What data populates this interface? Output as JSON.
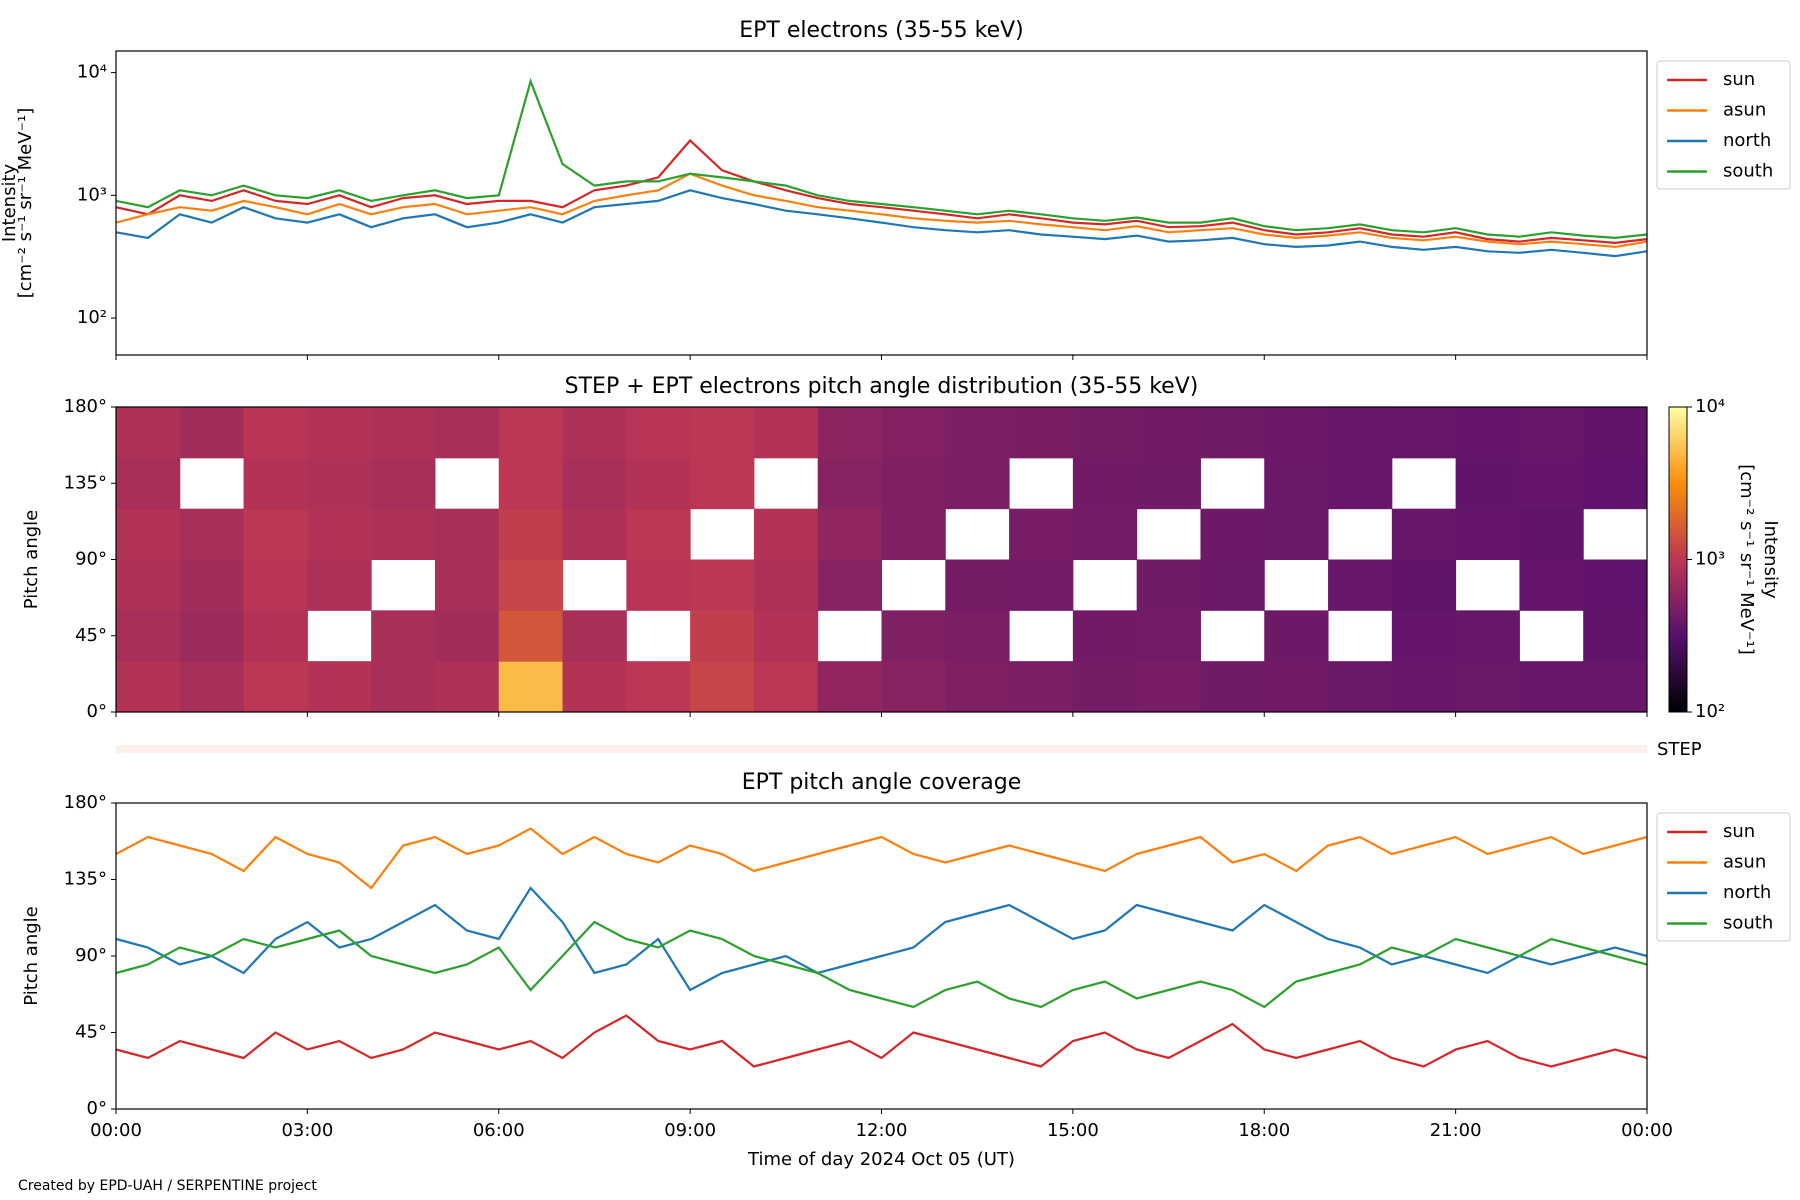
{
  "chart_data": [
    {
      "type": "line",
      "title": "EPT electrons (35-55 keV)",
      "ylabel": [
        "Intensity",
        "[cm⁻² s⁻¹ sr⁻¹ MeV⁻¹]"
      ],
      "log_y": true,
      "x": [
        0,
        0.5,
        1,
        1.5,
        2,
        2.5,
        3,
        3.5,
        4,
        4.5,
        5,
        5.5,
        6,
        6.5,
        7,
        7.5,
        8,
        8.5,
        9,
        9.5,
        10,
        10.5,
        11,
        11.5,
        12,
        12.5,
        13,
        13.5,
        14,
        14.5,
        15,
        15.5,
        16,
        16.5,
        17,
        17.5,
        18,
        18.5,
        19,
        19.5,
        20,
        20.5,
        21,
        21.5,
        22,
        22.5,
        23,
        23.5,
        24
      ],
      "xlim": [
        0,
        24
      ],
      "xticks": [
        0,
        3,
        6,
        9,
        12,
        15,
        18,
        21,
        24
      ],
      "ylim": [
        50,
        15000
      ],
      "yticks": [
        {
          "value": 100,
          "label": "10²"
        },
        {
          "value": 1000,
          "label": "10³"
        },
        {
          "value": 10000,
          "label": "10⁴"
        }
      ],
      "series": [
        {
          "name": "sun",
          "color": "#d62728",
          "values": [
            800,
            700,
            1000,
            900,
            1100,
            900,
            850,
            1000,
            800,
            950,
            1000,
            850,
            900,
            900,
            800,
            1100,
            1200,
            1400,
            2800,
            1600,
            1300,
            1100,
            950,
            850,
            800,
            750,
            700,
            650,
            700,
            650,
            600,
            580,
            620,
            550,
            560,
            600,
            520,
            480,
            500,
            540,
            480,
            460,
            500,
            440,
            420,
            450,
            430,
            410,
            440
          ]
        },
        {
          "name": "asun",
          "color": "#ff7f0e",
          "values": [
            600,
            700,
            800,
            750,
            900,
            800,
            700,
            850,
            700,
            800,
            850,
            700,
            750,
            800,
            700,
            900,
            1000,
            1100,
            1500,
            1200,
            1000,
            900,
            800,
            750,
            700,
            650,
            620,
            600,
            620,
            580,
            550,
            520,
            560,
            500,
            520,
            540,
            480,
            450,
            470,
            500,
            450,
            430,
            460,
            420,
            400,
            420,
            400,
            380,
            420
          ]
        },
        {
          "name": "north",
          "color": "#1f77b4",
          "values": [
            500,
            450,
            700,
            600,
            800,
            650,
            600,
            700,
            550,
            650,
            700,
            550,
            600,
            700,
            600,
            800,
            850,
            900,
            1100,
            950,
            850,
            750,
            700,
            650,
            600,
            550,
            520,
            500,
            520,
            480,
            460,
            440,
            470,
            420,
            430,
            450,
            400,
            380,
            390,
            420,
            380,
            360,
            380,
            350,
            340,
            360,
            340,
            320,
            350
          ]
        },
        {
          "name": "south",
          "color": "#2ca02c",
          "values": [
            900,
            800,
            1100,
            1000,
            1200,
            1000,
            950,
            1100,
            900,
            1000,
            1100,
            950,
            1000,
            8500,
            1800,
            1200,
            1300,
            1300,
            1500,
            1400,
            1300,
            1200,
            1000,
            900,
            850,
            800,
            750,
            700,
            750,
            700,
            650,
            620,
            660,
            600,
            600,
            650,
            560,
            520,
            540,
            580,
            520,
            500,
            540,
            480,
            460,
            500,
            470,
            450,
            480
          ]
        }
      ]
    },
    {
      "type": "heatmap",
      "title": "STEP + EPT electrons pitch angle distribution (35-55 keV)",
      "ylabel": [
        "Pitch angle"
      ],
      "xlim": [
        0,
        24
      ],
      "xticks": [
        0,
        3,
        6,
        9,
        12,
        15,
        18,
        21,
        24
      ],
      "ylim": [
        0,
        180
      ],
      "yticks": [
        {
          "value": 0,
          "label": "0°"
        },
        {
          "value": 45,
          "label": "45°"
        },
        {
          "value": 90,
          "label": "90°"
        },
        {
          "value": 135,
          "label": "135°"
        },
        {
          "value": 180,
          "label": "180°"
        }
      ],
      "x_bins": [
        0,
        1,
        2,
        3,
        4,
        5,
        6,
        7,
        8,
        9,
        10,
        11,
        12,
        13,
        14,
        15,
        16,
        17,
        18,
        19,
        20,
        21,
        22,
        23,
        24
      ],
      "y_bins": [
        0,
        30,
        60,
        90,
        120,
        150,
        180
      ],
      "z": [
        [
          900,
          800,
          1000,
          900,
          800,
          850,
          5000,
          900,
          1000,
          1200,
          1000,
          600,
          550,
          500,
          480,
          450,
          460,
          420,
          430,
          400,
          380,
          400,
          390,
          380
        ],
        [
          800,
          700,
          900,
          null,
          800,
          750,
          1500,
          800,
          null,
          1100,
          900,
          null,
          500,
          480,
          null,
          430,
          440,
          null,
          410,
          null,
          370,
          380,
          null,
          360
        ],
        [
          850,
          750,
          950,
          850,
          null,
          800,
          1200,
          null,
          950,
          1000,
          850,
          550,
          null,
          450,
          440,
          null,
          420,
          400,
          null,
          390,
          360,
          null,
          370,
          350
        ],
        [
          900,
          800,
          1000,
          900,
          850,
          800,
          1100,
          850,
          1000,
          null,
          900,
          600,
          500,
          null,
          460,
          440,
          null,
          410,
          400,
          null,
          380,
          370,
          360,
          null
        ],
        [
          800,
          null,
          900,
          850,
          800,
          null,
          1000,
          800,
          900,
          1000,
          null,
          550,
          500,
          480,
          null,
          430,
          420,
          null,
          400,
          380,
          null,
          360,
          370,
          350
        ],
        [
          850,
          750,
          950,
          900,
          850,
          800,
          1000,
          850,
          950,
          1000,
          900,
          580,
          520,
          490,
          470,
          450,
          430,
          420,
          410,
          390,
          380,
          370,
          380,
          360
        ]
      ],
      "colormap": "inferno",
      "clim": [
        100,
        10000
      ],
      "cticks": [
        {
          "value": 100,
          "label": "10²"
        },
        {
          "value": 1000,
          "label": "10³"
        },
        {
          "value": 10000,
          "label": "10⁴"
        }
      ],
      "clabel": [
        "Intensity",
        "[cm⁻² s⁻¹ sr⁻¹ MeV⁻¹]"
      ],
      "strip_label": "STEP"
    },
    {
      "type": "line",
      "title": "EPT pitch angle coverage",
      "ylabel": [
        "Pitch angle"
      ],
      "xlabel": "Time of day 2024 Oct 05 (UT)",
      "x": [
        0,
        0.5,
        1,
        1.5,
        2,
        2.5,
        3,
        3.5,
        4,
        4.5,
        5,
        5.5,
        6,
        6.5,
        7,
        7.5,
        8,
        8.5,
        9,
        9.5,
        10,
        10.5,
        11,
        11.5,
        12,
        12.5,
        13,
        13.5,
        14,
        14.5,
        15,
        15.5,
        16,
        16.5,
        17,
        17.5,
        18,
        18.5,
        19,
        19.5,
        20,
        20.5,
        21,
        21.5,
        22,
        22.5,
        23,
        23.5,
        24
      ],
      "xlim": [
        0,
        24
      ],
      "xticks": [
        {
          "value": 0,
          "label": "00:00"
        },
        {
          "value": 3,
          "label": "03:00"
        },
        {
          "value": 6,
          "label": "06:00"
        },
        {
          "value": 9,
          "label": "09:00"
        },
        {
          "value": 12,
          "label": "12:00"
        },
        {
          "value": 15,
          "label": "15:00"
        },
        {
          "value": 18,
          "label": "18:00"
        },
        {
          "value": 21,
          "label": "21:00"
        },
        {
          "value": 24,
          "label": "00:00"
        }
      ],
      "ylim": [
        0,
        180
      ],
      "yticks": [
        {
          "value": 0,
          "label": "0°"
        },
        {
          "value": 45,
          "label": "45°"
        },
        {
          "value": 90,
          "label": "90°"
        },
        {
          "value": 135,
          "label": "135°"
        },
        {
          "value": 180,
          "label": "180°"
        }
      ],
      "series": [
        {
          "name": "sun",
          "color": "#d62728",
          "values": [
            35,
            30,
            40,
            35,
            30,
            45,
            35,
            40,
            30,
            35,
            45,
            40,
            35,
            40,
            30,
            45,
            55,
            40,
            35,
            40,
            25,
            30,
            35,
            40,
            30,
            45,
            40,
            35,
            30,
            25,
            40,
            45,
            35,
            30,
            40,
            50,
            35,
            30,
            35,
            40,
            30,
            25,
            35,
            40,
            30,
            25,
            30,
            35,
            30
          ]
        },
        {
          "name": "asun",
          "color": "#ff7f0e",
          "values": [
            150,
            160,
            155,
            150,
            140,
            160,
            150,
            145,
            130,
            155,
            160,
            150,
            155,
            165,
            150,
            160,
            150,
            145,
            155,
            150,
            140,
            145,
            150,
            155,
            160,
            150,
            145,
            150,
            155,
            150,
            145,
            140,
            150,
            155,
            160,
            145,
            150,
            140,
            155,
            160,
            150,
            155,
            160,
            150,
            155,
            160,
            150,
            155,
            160
          ]
        },
        {
          "name": "north",
          "color": "#1f77b4",
          "values": [
            100,
            95,
            85,
            90,
            80,
            100,
            110,
            95,
            100,
            110,
            120,
            105,
            100,
            130,
            110,
            80,
            85,
            100,
            70,
            80,
            85,
            90,
            80,
            85,
            90,
            95,
            110,
            115,
            120,
            110,
            100,
            105,
            120,
            115,
            110,
            105,
            120,
            110,
            100,
            95,
            85,
            90,
            85,
            80,
            90,
            85,
            90,
            95,
            90
          ]
        },
        {
          "name": "south",
          "color": "#2ca02c",
          "values": [
            80,
            85,
            95,
            90,
            100,
            95,
            100,
            105,
            90,
            85,
            80,
            85,
            95,
            70,
            90,
            110,
            100,
            95,
            105,
            100,
            90,
            85,
            80,
            70,
            65,
            60,
            70,
            75,
            65,
            60,
            70,
            75,
            65,
            70,
            75,
            70,
            60,
            75,
            80,
            85,
            95,
            90,
            100,
            95,
            90,
            100,
            95,
            90,
            85
          ]
        }
      ]
    }
  ],
  "footer": "Created by EPD-UAH / SERPENTINE project"
}
